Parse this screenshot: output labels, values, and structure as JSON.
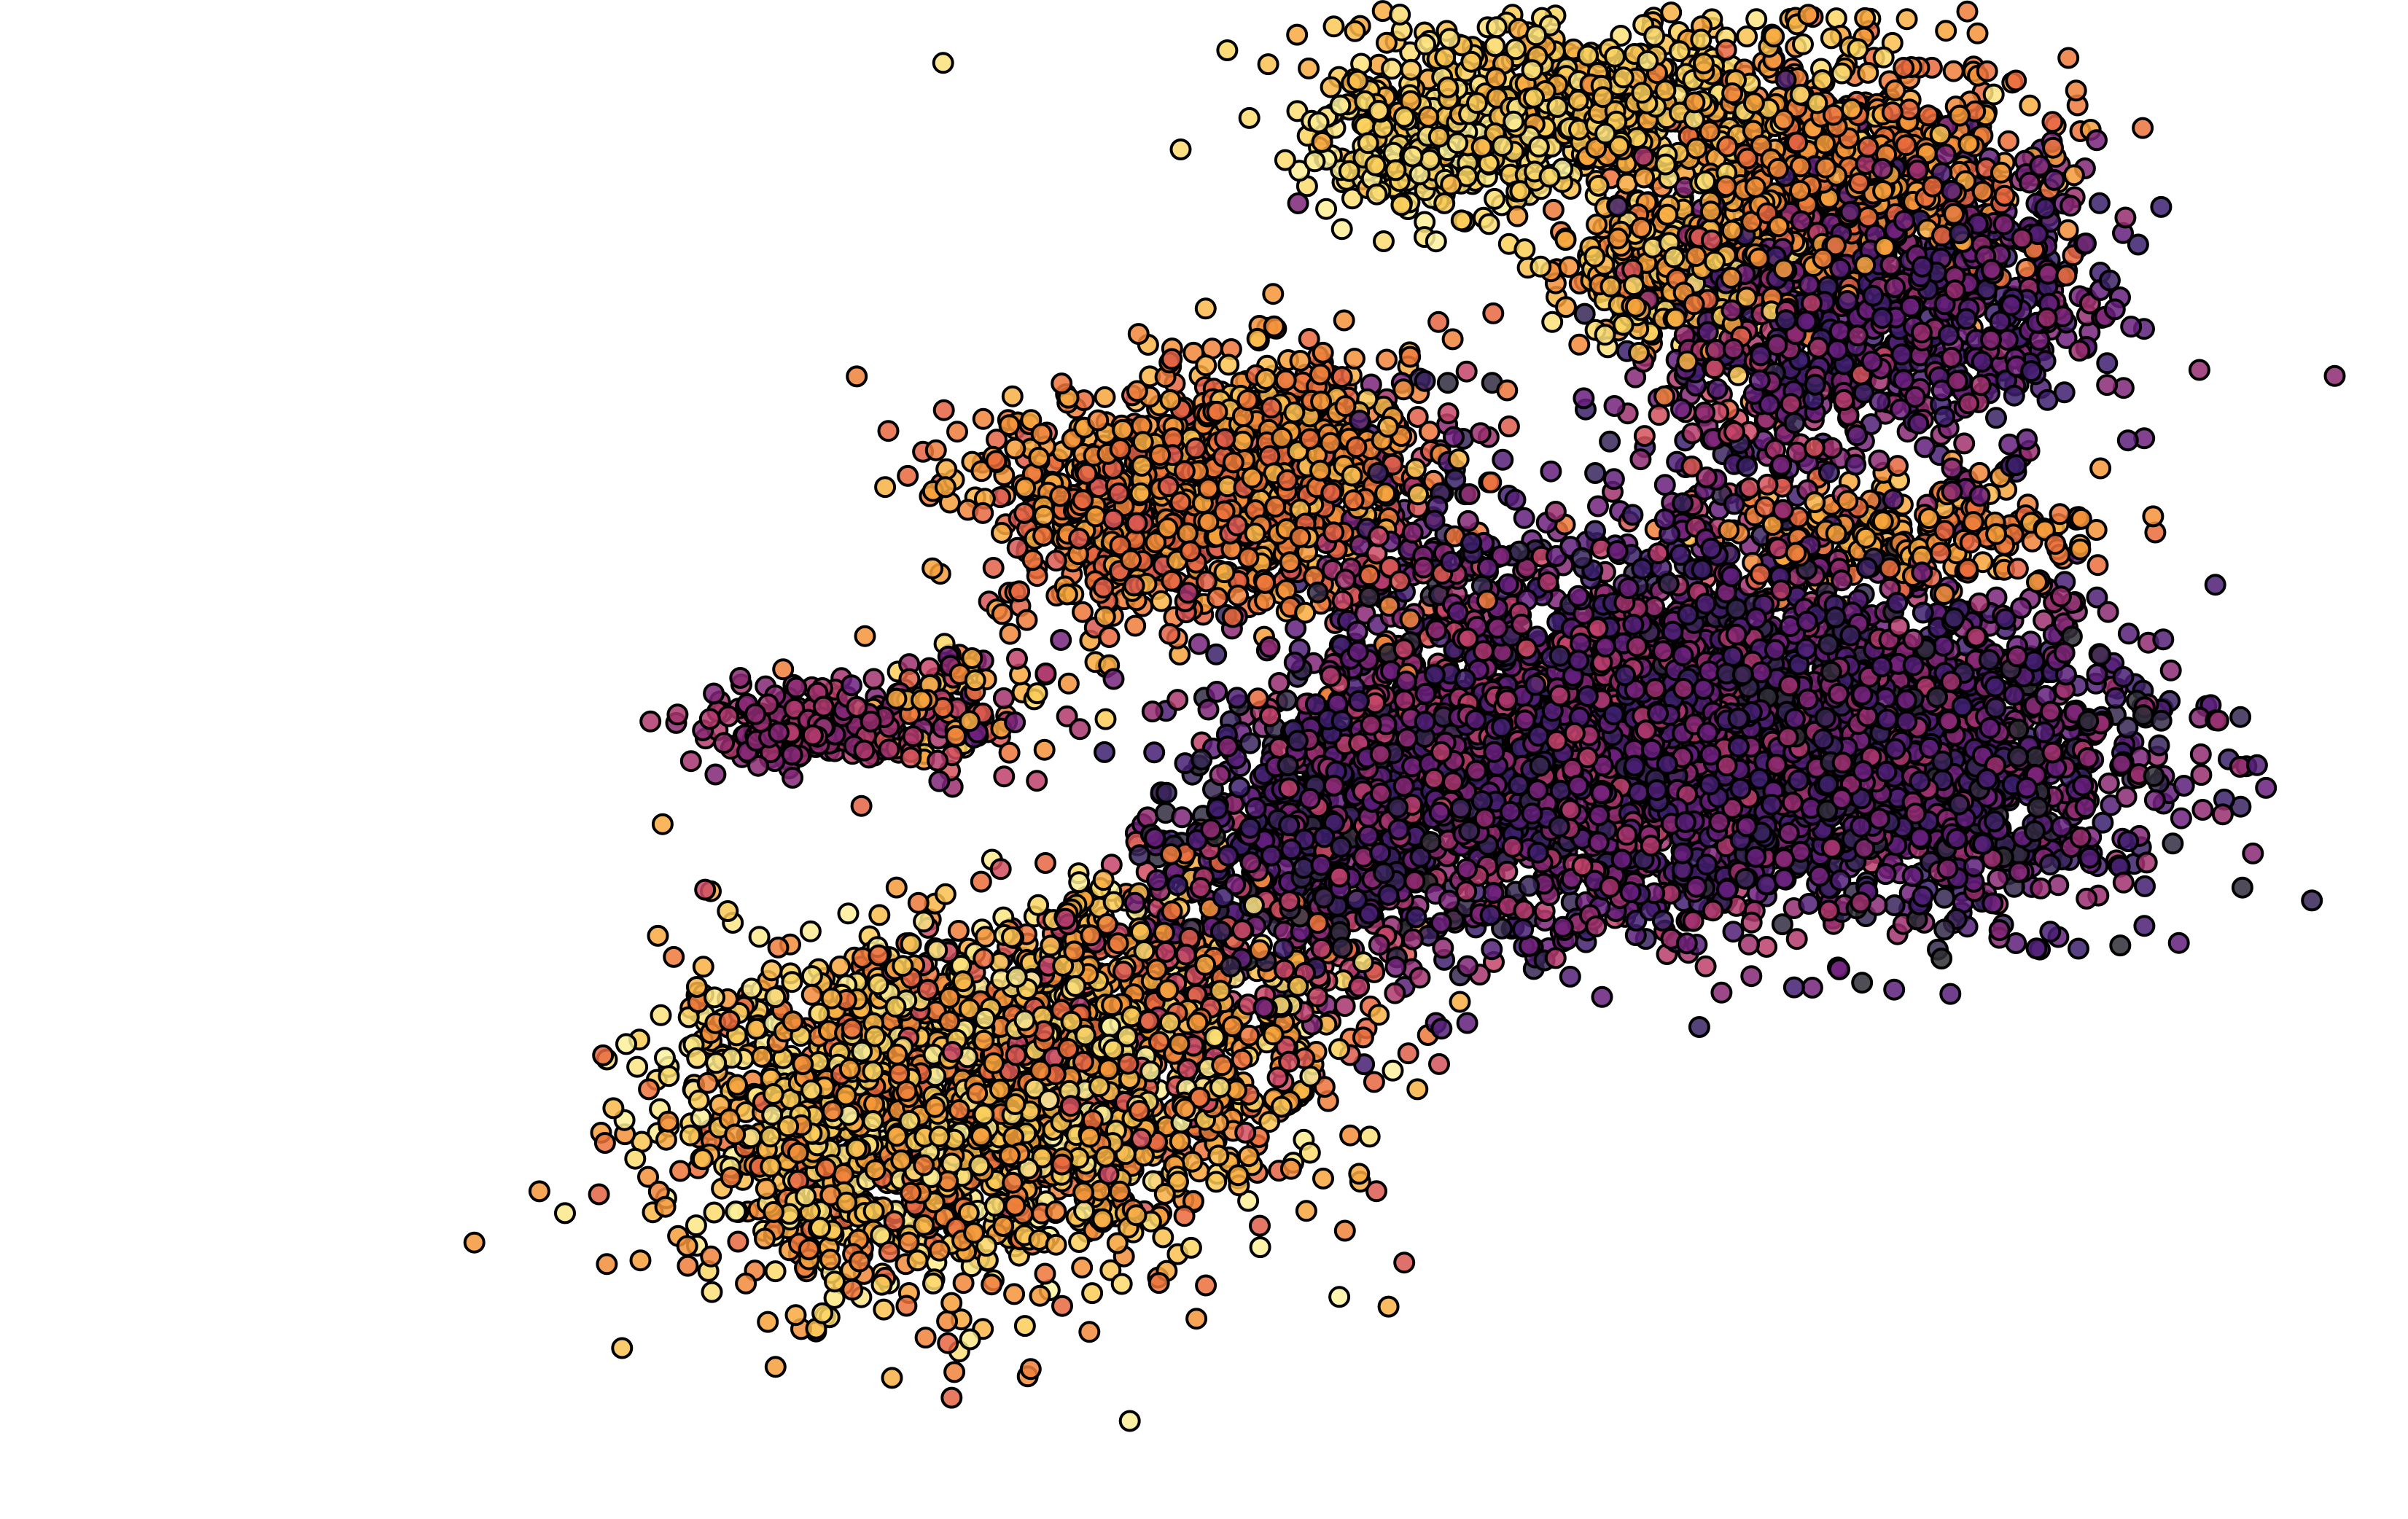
{
  "chart_data": {
    "type": "scatter",
    "title": "",
    "xlabel": "",
    "ylabel": "",
    "axes_visible": false,
    "grid": false,
    "legend": "none",
    "xlim": [
      0,
      100
    ],
    "ylim": [
      0,
      100
    ],
    "colormap": "inferno",
    "colormap_stops": [
      "#2f2f33",
      "#3b1f6e",
      "#6b1f7f",
      "#9c2f6d",
      "#c8466b",
      "#ea6a3b",
      "#f7a23a",
      "#fbd25c",
      "#fcf4a3"
    ],
    "marker": {
      "edge_color": "#000000",
      "fill_alpha": 0.85
    },
    "clusters": [
      {
        "name": "",
        "cx": 11.5,
        "cy": 26,
        "sx": 8.5,
        "sy": 5.5,
        "n": 1700,
        "cmin": 0.6,
        "cmax": 1.0
      },
      {
        "name": "",
        "cx": 19,
        "cy": 30,
        "sx": 8,
        "sy": 4.5,
        "n": 500,
        "cmin": 0.5,
        "cmax": 1.0
      },
      {
        "name": "",
        "cx": 26,
        "cy": 36,
        "sx": 6,
        "sy": 4,
        "n": 350,
        "cmin": 0.4,
        "cmax": 0.95
      },
      {
        "name": "",
        "cx": 46,
        "cy": 50,
        "sx": 8,
        "sy": 6,
        "n": 1500,
        "cmin": 0.05,
        "cmax": 0.5
      },
      {
        "name": "",
        "cx": 60,
        "cy": 52,
        "sx": 8,
        "sy": 6,
        "n": 1500,
        "cmin": 0.05,
        "cmax": 0.45
      },
      {
        "name": "",
        "cx": 72,
        "cy": 50,
        "sx": 7,
        "sy": 5.5,
        "n": 1000,
        "cmin": 0.0,
        "cmax": 0.4
      },
      {
        "name": "",
        "cx": 33,
        "cy": 44,
        "sx": 4.5,
        "sy": 4,
        "n": 400,
        "cmin": 0.0,
        "cmax": 0.35
      },
      {
        "name": "",
        "cx": 25,
        "cy": 67,
        "sx": 5.5,
        "sy": 4,
        "n": 750,
        "cmin": 0.55,
        "cmax": 0.8
      },
      {
        "name": "",
        "cx": 33,
        "cy": 71,
        "sx": 3.5,
        "sy": 3,
        "n": 350,
        "cmin": 0.6,
        "cmax": 0.85
      },
      {
        "name": "",
        "cx": 3,
        "cy": 52,
        "sx": 3,
        "sy": 1.2,
        "n": 220,
        "cmin": 0.3,
        "cmax": 0.45
      },
      {
        "name": "",
        "cx": 11,
        "cy": 53,
        "sx": 4,
        "sy": 2,
        "n": 140,
        "cmin": 0.2,
        "cmax": 0.9
      },
      {
        "name": "",
        "cx": 70,
        "cy": 65,
        "sx": 6,
        "sy": 1.8,
        "n": 220,
        "cmin": 0.6,
        "cmax": 0.82
      },
      {
        "name": "",
        "cx": 50,
        "cy": 94,
        "sx": 8,
        "sy": 3,
        "n": 550,
        "cmin": 0.75,
        "cmax": 0.95
      },
      {
        "name": "",
        "cx": 41,
        "cy": 90,
        "sx": 3.5,
        "sy": 2,
        "n": 220,
        "cmin": 0.85,
        "cmax": 1.0
      },
      {
        "name": "",
        "cx": 56,
        "cy": 83,
        "sx": 4,
        "sy": 3,
        "n": 300,
        "cmin": 0.65,
        "cmax": 0.95
      },
      {
        "name": "",
        "cx": 66,
        "cy": 89,
        "sx": 6,
        "sy": 4,
        "n": 600,
        "cmin": 0.6,
        "cmax": 0.78
      },
      {
        "name": "",
        "cx": 70,
        "cy": 80,
        "sx": 6,
        "sy": 5,
        "n": 700,
        "cmin": 0.1,
        "cmax": 0.4
      },
      {
        "name": "",
        "cx": 60,
        "cy": 75,
        "sx": 4,
        "sy": 6,
        "n": 250,
        "cmin": 0.05,
        "cmax": 0.6
      },
      {
        "name": "",
        "cx": 40,
        "cy": 62,
        "sx": 3.5,
        "sy": 7,
        "n": 220,
        "cmin": 0.0,
        "cmax": 0.7
      }
    ],
    "outliers": [
      {
        "x": -51,
        "y": 56,
        "c": 0.35
      },
      {
        "x": -46,
        "y": 56,
        "c": 0.3
      }
    ]
  }
}
